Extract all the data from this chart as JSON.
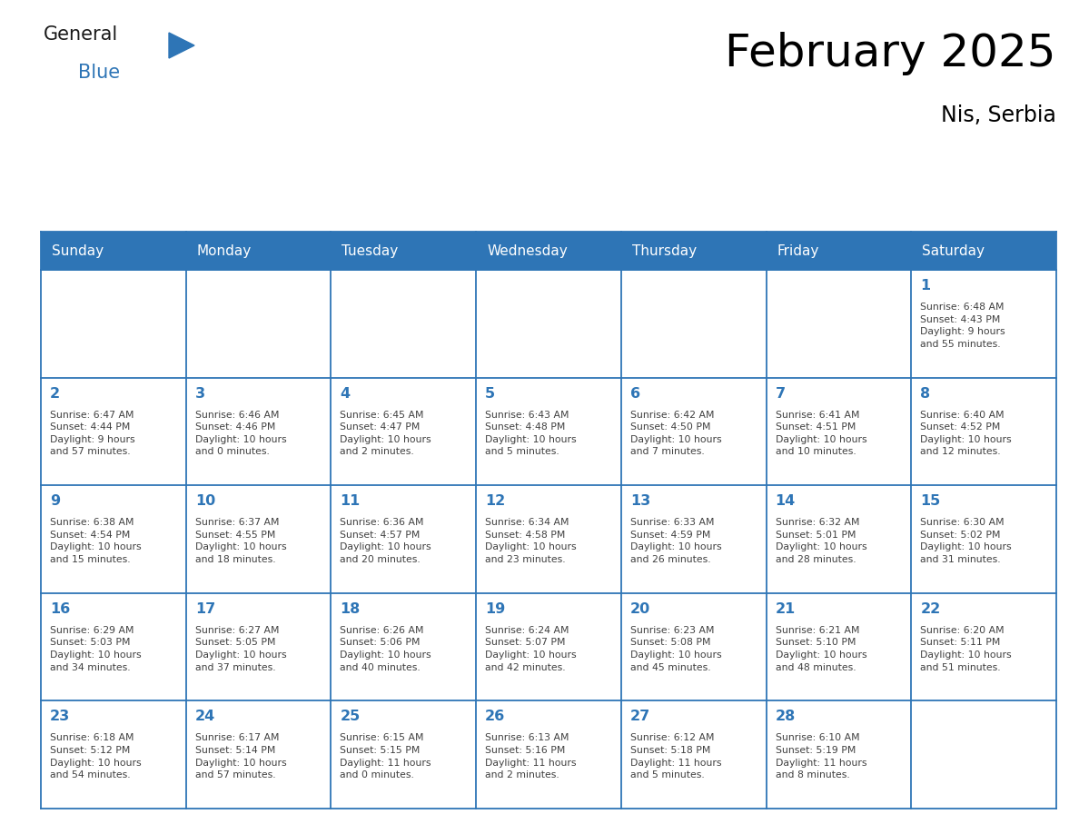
{
  "title": "February 2025",
  "subtitle": "Nis, Serbia",
  "header_color": "#2E75B6",
  "header_text_color": "#FFFFFF",
  "cell_bg_color": "#FFFFFF",
  "border_color": "#2E75B6",
  "title_color": "#000000",
  "subtitle_color": "#000000",
  "day_number_color": "#2E75B6",
  "cell_text_color": "#404040",
  "days_of_week": [
    "Sunday",
    "Monday",
    "Tuesday",
    "Wednesday",
    "Thursday",
    "Friday",
    "Saturday"
  ],
  "weeks": [
    [
      {
        "day": "",
        "info": ""
      },
      {
        "day": "",
        "info": ""
      },
      {
        "day": "",
        "info": ""
      },
      {
        "day": "",
        "info": ""
      },
      {
        "day": "",
        "info": ""
      },
      {
        "day": "",
        "info": ""
      },
      {
        "day": "1",
        "info": "Sunrise: 6:48 AM\nSunset: 4:43 PM\nDaylight: 9 hours\nand 55 minutes."
      }
    ],
    [
      {
        "day": "2",
        "info": "Sunrise: 6:47 AM\nSunset: 4:44 PM\nDaylight: 9 hours\nand 57 minutes."
      },
      {
        "day": "3",
        "info": "Sunrise: 6:46 AM\nSunset: 4:46 PM\nDaylight: 10 hours\nand 0 minutes."
      },
      {
        "day": "4",
        "info": "Sunrise: 6:45 AM\nSunset: 4:47 PM\nDaylight: 10 hours\nand 2 minutes."
      },
      {
        "day": "5",
        "info": "Sunrise: 6:43 AM\nSunset: 4:48 PM\nDaylight: 10 hours\nand 5 minutes."
      },
      {
        "day": "6",
        "info": "Sunrise: 6:42 AM\nSunset: 4:50 PM\nDaylight: 10 hours\nand 7 minutes."
      },
      {
        "day": "7",
        "info": "Sunrise: 6:41 AM\nSunset: 4:51 PM\nDaylight: 10 hours\nand 10 minutes."
      },
      {
        "day": "8",
        "info": "Sunrise: 6:40 AM\nSunset: 4:52 PM\nDaylight: 10 hours\nand 12 minutes."
      }
    ],
    [
      {
        "day": "9",
        "info": "Sunrise: 6:38 AM\nSunset: 4:54 PM\nDaylight: 10 hours\nand 15 minutes."
      },
      {
        "day": "10",
        "info": "Sunrise: 6:37 AM\nSunset: 4:55 PM\nDaylight: 10 hours\nand 18 minutes."
      },
      {
        "day": "11",
        "info": "Sunrise: 6:36 AM\nSunset: 4:57 PM\nDaylight: 10 hours\nand 20 minutes."
      },
      {
        "day": "12",
        "info": "Sunrise: 6:34 AM\nSunset: 4:58 PM\nDaylight: 10 hours\nand 23 minutes."
      },
      {
        "day": "13",
        "info": "Sunrise: 6:33 AM\nSunset: 4:59 PM\nDaylight: 10 hours\nand 26 minutes."
      },
      {
        "day": "14",
        "info": "Sunrise: 6:32 AM\nSunset: 5:01 PM\nDaylight: 10 hours\nand 28 minutes."
      },
      {
        "day": "15",
        "info": "Sunrise: 6:30 AM\nSunset: 5:02 PM\nDaylight: 10 hours\nand 31 minutes."
      }
    ],
    [
      {
        "day": "16",
        "info": "Sunrise: 6:29 AM\nSunset: 5:03 PM\nDaylight: 10 hours\nand 34 minutes."
      },
      {
        "day": "17",
        "info": "Sunrise: 6:27 AM\nSunset: 5:05 PM\nDaylight: 10 hours\nand 37 minutes."
      },
      {
        "day": "18",
        "info": "Sunrise: 6:26 AM\nSunset: 5:06 PM\nDaylight: 10 hours\nand 40 minutes."
      },
      {
        "day": "19",
        "info": "Sunrise: 6:24 AM\nSunset: 5:07 PM\nDaylight: 10 hours\nand 42 minutes."
      },
      {
        "day": "20",
        "info": "Sunrise: 6:23 AM\nSunset: 5:08 PM\nDaylight: 10 hours\nand 45 minutes."
      },
      {
        "day": "21",
        "info": "Sunrise: 6:21 AM\nSunset: 5:10 PM\nDaylight: 10 hours\nand 48 minutes."
      },
      {
        "day": "22",
        "info": "Sunrise: 6:20 AM\nSunset: 5:11 PM\nDaylight: 10 hours\nand 51 minutes."
      }
    ],
    [
      {
        "day": "23",
        "info": "Sunrise: 6:18 AM\nSunset: 5:12 PM\nDaylight: 10 hours\nand 54 minutes."
      },
      {
        "day": "24",
        "info": "Sunrise: 6:17 AM\nSunset: 5:14 PM\nDaylight: 10 hours\nand 57 minutes."
      },
      {
        "day": "25",
        "info": "Sunrise: 6:15 AM\nSunset: 5:15 PM\nDaylight: 11 hours\nand 0 minutes."
      },
      {
        "day": "26",
        "info": "Sunrise: 6:13 AM\nSunset: 5:16 PM\nDaylight: 11 hours\nand 2 minutes."
      },
      {
        "day": "27",
        "info": "Sunrise: 6:12 AM\nSunset: 5:18 PM\nDaylight: 11 hours\nand 5 minutes."
      },
      {
        "day": "28",
        "info": "Sunrise: 6:10 AM\nSunset: 5:19 PM\nDaylight: 11 hours\nand 8 minutes."
      },
      {
        "day": "",
        "info": ""
      }
    ]
  ],
  "logo_general_color": "#1a1a1a",
  "logo_blue_color": "#2E75B6",
  "logo_triangle_color": "#2E75B6",
  "fig_width": 11.88,
  "fig_height": 9.18,
  "dpi": 100
}
